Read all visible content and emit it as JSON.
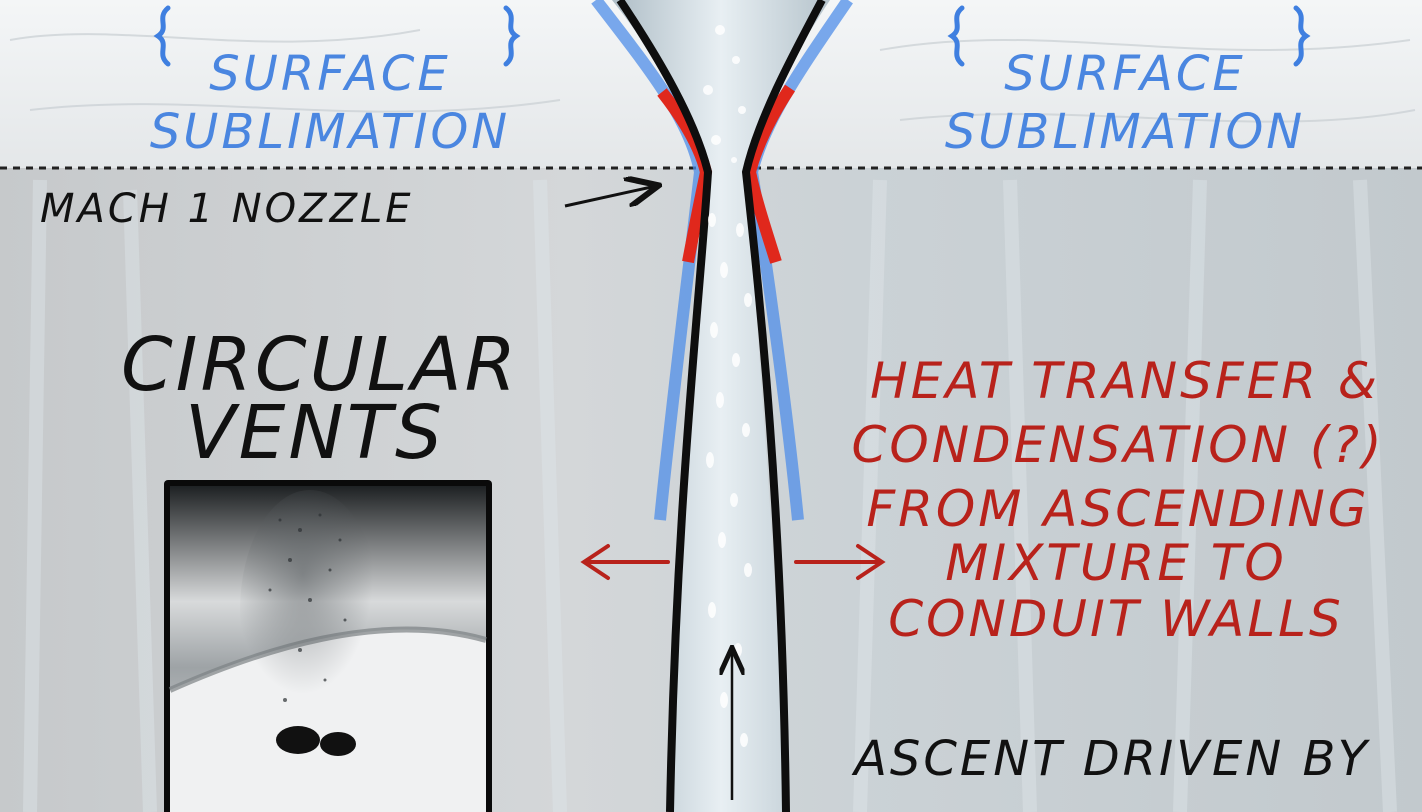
{
  "labels": {
    "surface_left": [
      "SURFACE",
      "SUBLIMATION"
    ],
    "surface_right": [
      "SURFACE",
      "SUBLIMATION"
    ],
    "nozzle": "MACH 1 NOZZLE",
    "vents": [
      "CIRCULAR",
      "VENTS"
    ],
    "heat": [
      "HEAT TRANSFER &",
      "CONDENSATION (?)",
      "FROM ASCENDING",
      "MIXTURE TO",
      "CONDUIT WALLS"
    ],
    "ascent": "ASCENT DRIVEN BY"
  },
  "colors": {
    "blue_label": "#4a86e0",
    "red_label": "#b8221b",
    "ink": "#111111",
    "ice": "#e8eef2"
  }
}
